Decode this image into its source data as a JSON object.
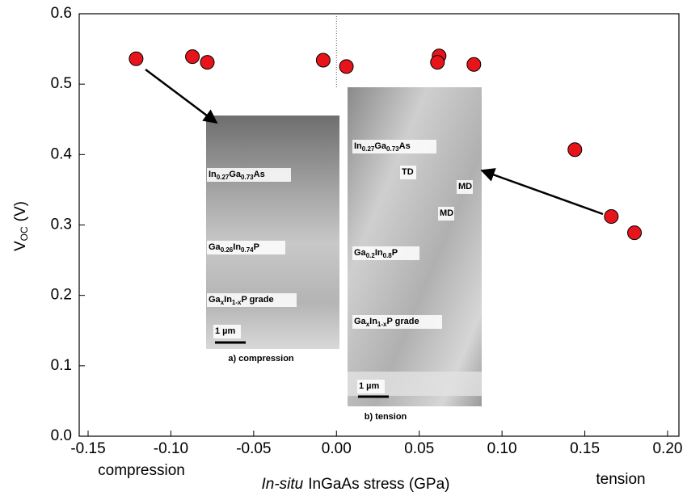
{
  "chart_data": {
    "type": "scatter",
    "xlabel": [
      "In-situ",
      "InGaAs stress (GPa)"
    ],
    "ylabel": [
      "V",
      "OC",
      "(V)"
    ],
    "annotations": [
      "compression",
      "tension"
    ],
    "series": [
      {
        "color": "#e8141b",
        "x": [
          -0.121,
          -0.087,
          -0.078,
          -0.008,
          0.006,
          0.062,
          0.061,
          0.083,
          0.144,
          0.166,
          0.18
        ],
        "values": [
          0.536,
          0.539,
          0.531,
          0.534,
          0.525,
          0.54,
          0.531,
          0.528,
          0.407,
          0.312,
          0.289
        ]
      }
    ],
    "xlim": [
      -0.15,
      0.2
    ],
    "xticks": [
      {
        "value": -0.15,
        "label": "-0.15"
      },
      {
        "value": -0.1,
        "label": "-0.10"
      },
      {
        "value": -0.05,
        "label": "-0.05"
      },
      {
        "value": 0,
        "label": "0.00"
      },
      {
        "value": 0.05,
        "label": "0.05"
      },
      {
        "value": 0.1,
        "label": "0.10"
      },
      {
        "value": 0.15,
        "label": "0.15"
      },
      {
        "value": 0.2,
        "label": "0.20"
      }
    ],
    "ylim": [
      0,
      0.6
    ],
    "yticks": [
      {
        "value": 0,
        "label": "0.0"
      },
      0.1,
      0.2,
      0.3,
      0.4,
      0.5,
      0.6
    ]
  },
  "insets": [
    {
      "caption": "a) compression",
      "labels": [
        {
          "parts": [
            "In",
            "0.27",
            "Ga",
            "0.73",
            "As"
          ]
        },
        {
          "parts": [
            "Ga",
            "0.26",
            "In",
            "0.74",
            "P"
          ]
        },
        {
          "parts": [
            "Ga",
            "x",
            "In",
            "1-x",
            "P grade"
          ]
        },
        {
          "parts": [
            "1 µm"
          ]
        }
      ]
    },
    {
      "caption": "b) tension",
      "labels": [
        {
          "parts": [
            "In",
            "0.27",
            "Ga",
            "0.73",
            "As"
          ]
        },
        {
          "parts": [
            "TD"
          ]
        },
        {
          "parts": [
            "MD"
          ]
        },
        {
          "parts": [
            "MD"
          ]
        },
        {
          "parts": [
            "Ga",
            "0.2",
            "In",
            "0.8",
            "P"
          ]
        },
        {
          "parts": [
            "Ga",
            "x",
            "In",
            "1-x",
            "P grade"
          ]
        },
        {
          "parts": [
            "1 µm"
          ]
        }
      ]
    }
  ]
}
